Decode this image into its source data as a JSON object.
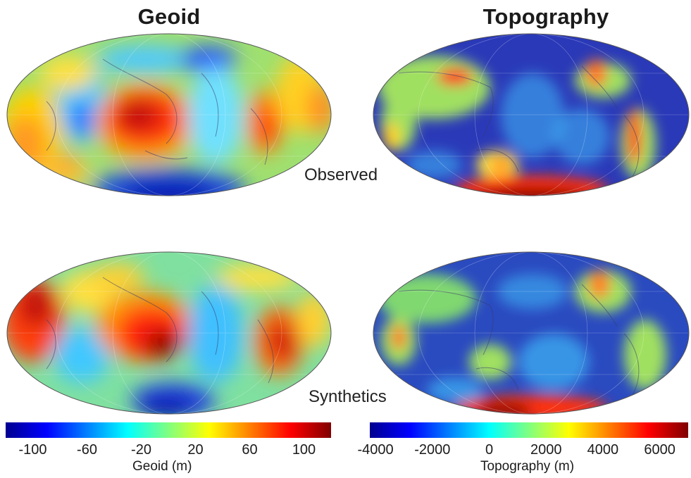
{
  "titles": {
    "geoid": "Geoid",
    "topography": "Topography"
  },
  "row_labels": {
    "observed": "Observed",
    "synthetics": "Synthetics"
  },
  "colorbars": {
    "geoid": {
      "label": "Geoid (m)",
      "min": -120,
      "max": 120,
      "ticks": [
        "-100",
        "-60",
        "-20",
        "20",
        "60",
        "100"
      ],
      "tick_values": [
        -100,
        -60,
        -20,
        20,
        60,
        100
      ]
    },
    "topography": {
      "label": "Topography (m)",
      "min": -4200,
      "max": 7000,
      "ticks": [
        "-4000",
        "-2000",
        "0",
        "2000",
        "4000",
        "6000"
      ],
      "tick_values": [
        -4000,
        -2000,
        0,
        2000,
        4000,
        6000
      ]
    }
  },
  "colors": {
    "jet": [
      "#00008f",
      "#0000ff",
      "#0080ff",
      "#00ffff",
      "#80ff80",
      "#ffff00",
      "#ff8000",
      "#ff0000",
      "#800000"
    ],
    "ocean_low": "#2a39b8",
    "coastline": "#3b3b6b"
  }
}
